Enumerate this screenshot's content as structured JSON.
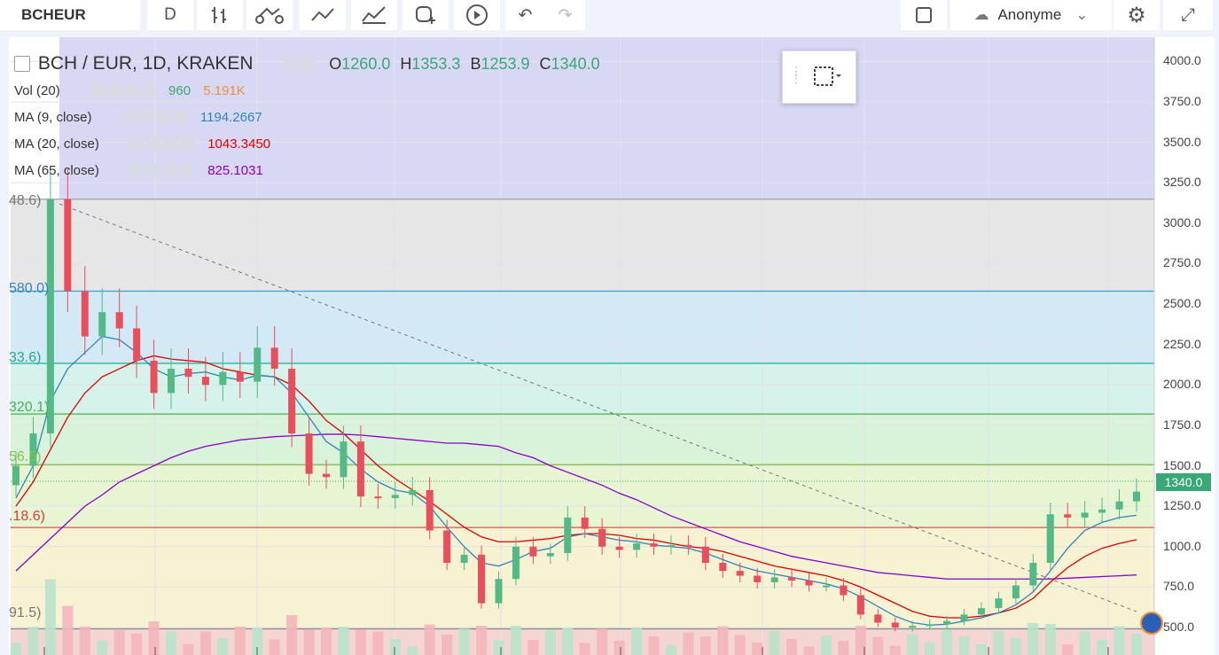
{
  "toolbar": {
    "symbol": "BCHEUR",
    "interval": "D",
    "user": "Anonyme",
    "icons": [
      "bar-style-icon",
      "indicators-icon",
      "compare-icon",
      "alert-icon",
      "replay-icon",
      "undo-icon",
      "redo-icon",
      "fullscreen-icon",
      "settings-icon"
    ]
  },
  "legend": {
    "title": "BCH / EUR, 1D, KRAKEN",
    "ohlc": [
      {
        "k": "O",
        "v": "1260.0"
      },
      {
        "k": "H",
        "v": "1353.3"
      },
      {
        "k": "B",
        "v": "1253.9"
      },
      {
        "k": "C",
        "v": "1340.0"
      }
    ],
    "vol": {
      "label": "Vol (20)",
      "v1": "960",
      "v2": "5.191K"
    },
    "ma9": {
      "label": "MA (9, close)",
      "value": "1194.2667",
      "color": "#2e86c1"
    },
    "ma20": {
      "label": "MA (20, close)",
      "value": "1043.3450",
      "color": "#e00000"
    },
    "ma65": {
      "label": "MA (65, close)",
      "value": "825.1031",
      "color": "#8800cc"
    }
  },
  "fib_labels": [
    "48.6)",
    "580.0)",
    "33.6)",
    "320.1)",
    "56.5)",
    ".18.6)",
    "91.5)"
  ],
  "price_tag": "1340.0",
  "chart_data": {
    "type": "candlestick",
    "title": "BCH / EUR, 1D, KRAKEN",
    "y_ticks": [
      4000,
      3750,
      3500,
      3250,
      3000,
      2750,
      2500,
      2250,
      2000,
      1750,
      1500,
      1250,
      1000,
      750,
      500
    ],
    "ylim": [
      330,
      4150
    ],
    "last_close": 1340.0,
    "fib_levels": [
      {
        "price": 3148.6,
        "color": "#9e9e9e"
      },
      {
        "price": 2580.0,
        "color": "#3aa0d8"
      },
      {
        "price": 2133.6,
        "color": "#29b6a0"
      },
      {
        "price": 1820.1,
        "color": "#4caf50"
      },
      {
        "price": 1506.5,
        "color": "#8bc34a"
      },
      {
        "price": 1118.6,
        "color": "#e05050"
      },
      {
        "price": 491.5,
        "color": "#888888"
      }
    ],
    "candles": [
      1500,
      1700,
      3148,
      2580,
      2300,
      2450,
      2350,
      2150,
      1950,
      2100,
      2050,
      2000,
      2080,
      2020,
      2230,
      2100,
      1700,
      1450,
      1430,
      1650,
      1310,
      1300,
      1320,
      1350,
      1100,
      900,
      950,
      650,
      800,
      1000,
      940,
      960,
      1180,
      1110,
      1000,
      980,
      1020,
      1000,
      1010,
      1000,
      900,
      850,
      820,
      780,
      810,
      790,
      760,
      760,
      700,
      580,
      530,
      500,
      510,
      520,
      540,
      580,
      620,
      680,
      760,
      900,
      1200,
      1180,
      1210,
      1230,
      1280,
      1340
    ],
    "ma9": [
      1300,
      1500,
      1900,
      2100,
      2200,
      2300,
      2280,
      2200,
      2100,
      2050,
      2070,
      2080,
      2050,
      2030,
      2060,
      2050,
      1950,
      1800,
      1650,
      1580,
      1480,
      1400,
      1350,
      1330,
      1250,
      1120,
      1000,
      900,
      880,
      920,
      970,
      990,
      1060,
      1080,
      1060,
      1040,
      1030,
      1010,
      1000,
      990,
      960,
      920,
      880,
      850,
      830,
      810,
      790,
      770,
      740,
      690,
      630,
      570,
      530,
      515,
      520,
      540,
      560,
      590,
      640,
      720,
      850,
      990,
      1100,
      1150,
      1180,
      1194
    ],
    "ma20": [
      1250,
      1400,
      1600,
      1800,
      1950,
      2050,
      2100,
      2150,
      2180,
      2160,
      2150,
      2140,
      2100,
      2080,
      2060,
      2050,
      2000,
      1900,
      1780,
      1700,
      1600,
      1500,
      1420,
      1350,
      1280,
      1200,
      1120,
      1060,
      1030,
      1030,
      1040,
      1050,
      1070,
      1080,
      1080,
      1070,
      1050,
      1040,
      1020,
      1000,
      990,
      970,
      940,
      910,
      880,
      860,
      840,
      820,
      790,
      750,
      700,
      650,
      600,
      570,
      560,
      560,
      570,
      590,
      620,
      680,
      780,
      870,
      940,
      990,
      1020,
      1043
    ],
    "ma65": [
      850,
      950,
      1050,
      1150,
      1250,
      1320,
      1400,
      1450,
      1500,
      1550,
      1590,
      1620,
      1640,
      1660,
      1670,
      1680,
      1685,
      1690,
      1695,
      1695,
      1690,
      1680,
      1670,
      1660,
      1650,
      1640,
      1640,
      1630,
      1620,
      1580,
      1550,
      1500,
      1460,
      1420,
      1380,
      1330,
      1290,
      1240,
      1190,
      1150,
      1110,
      1070,
      1030,
      1000,
      970,
      940,
      920,
      900,
      880,
      860,
      840,
      830,
      820,
      810,
      800,
      800,
      800,
      800,
      800,
      800,
      800,
      805,
      810,
      815,
      820,
      825
    ]
  }
}
